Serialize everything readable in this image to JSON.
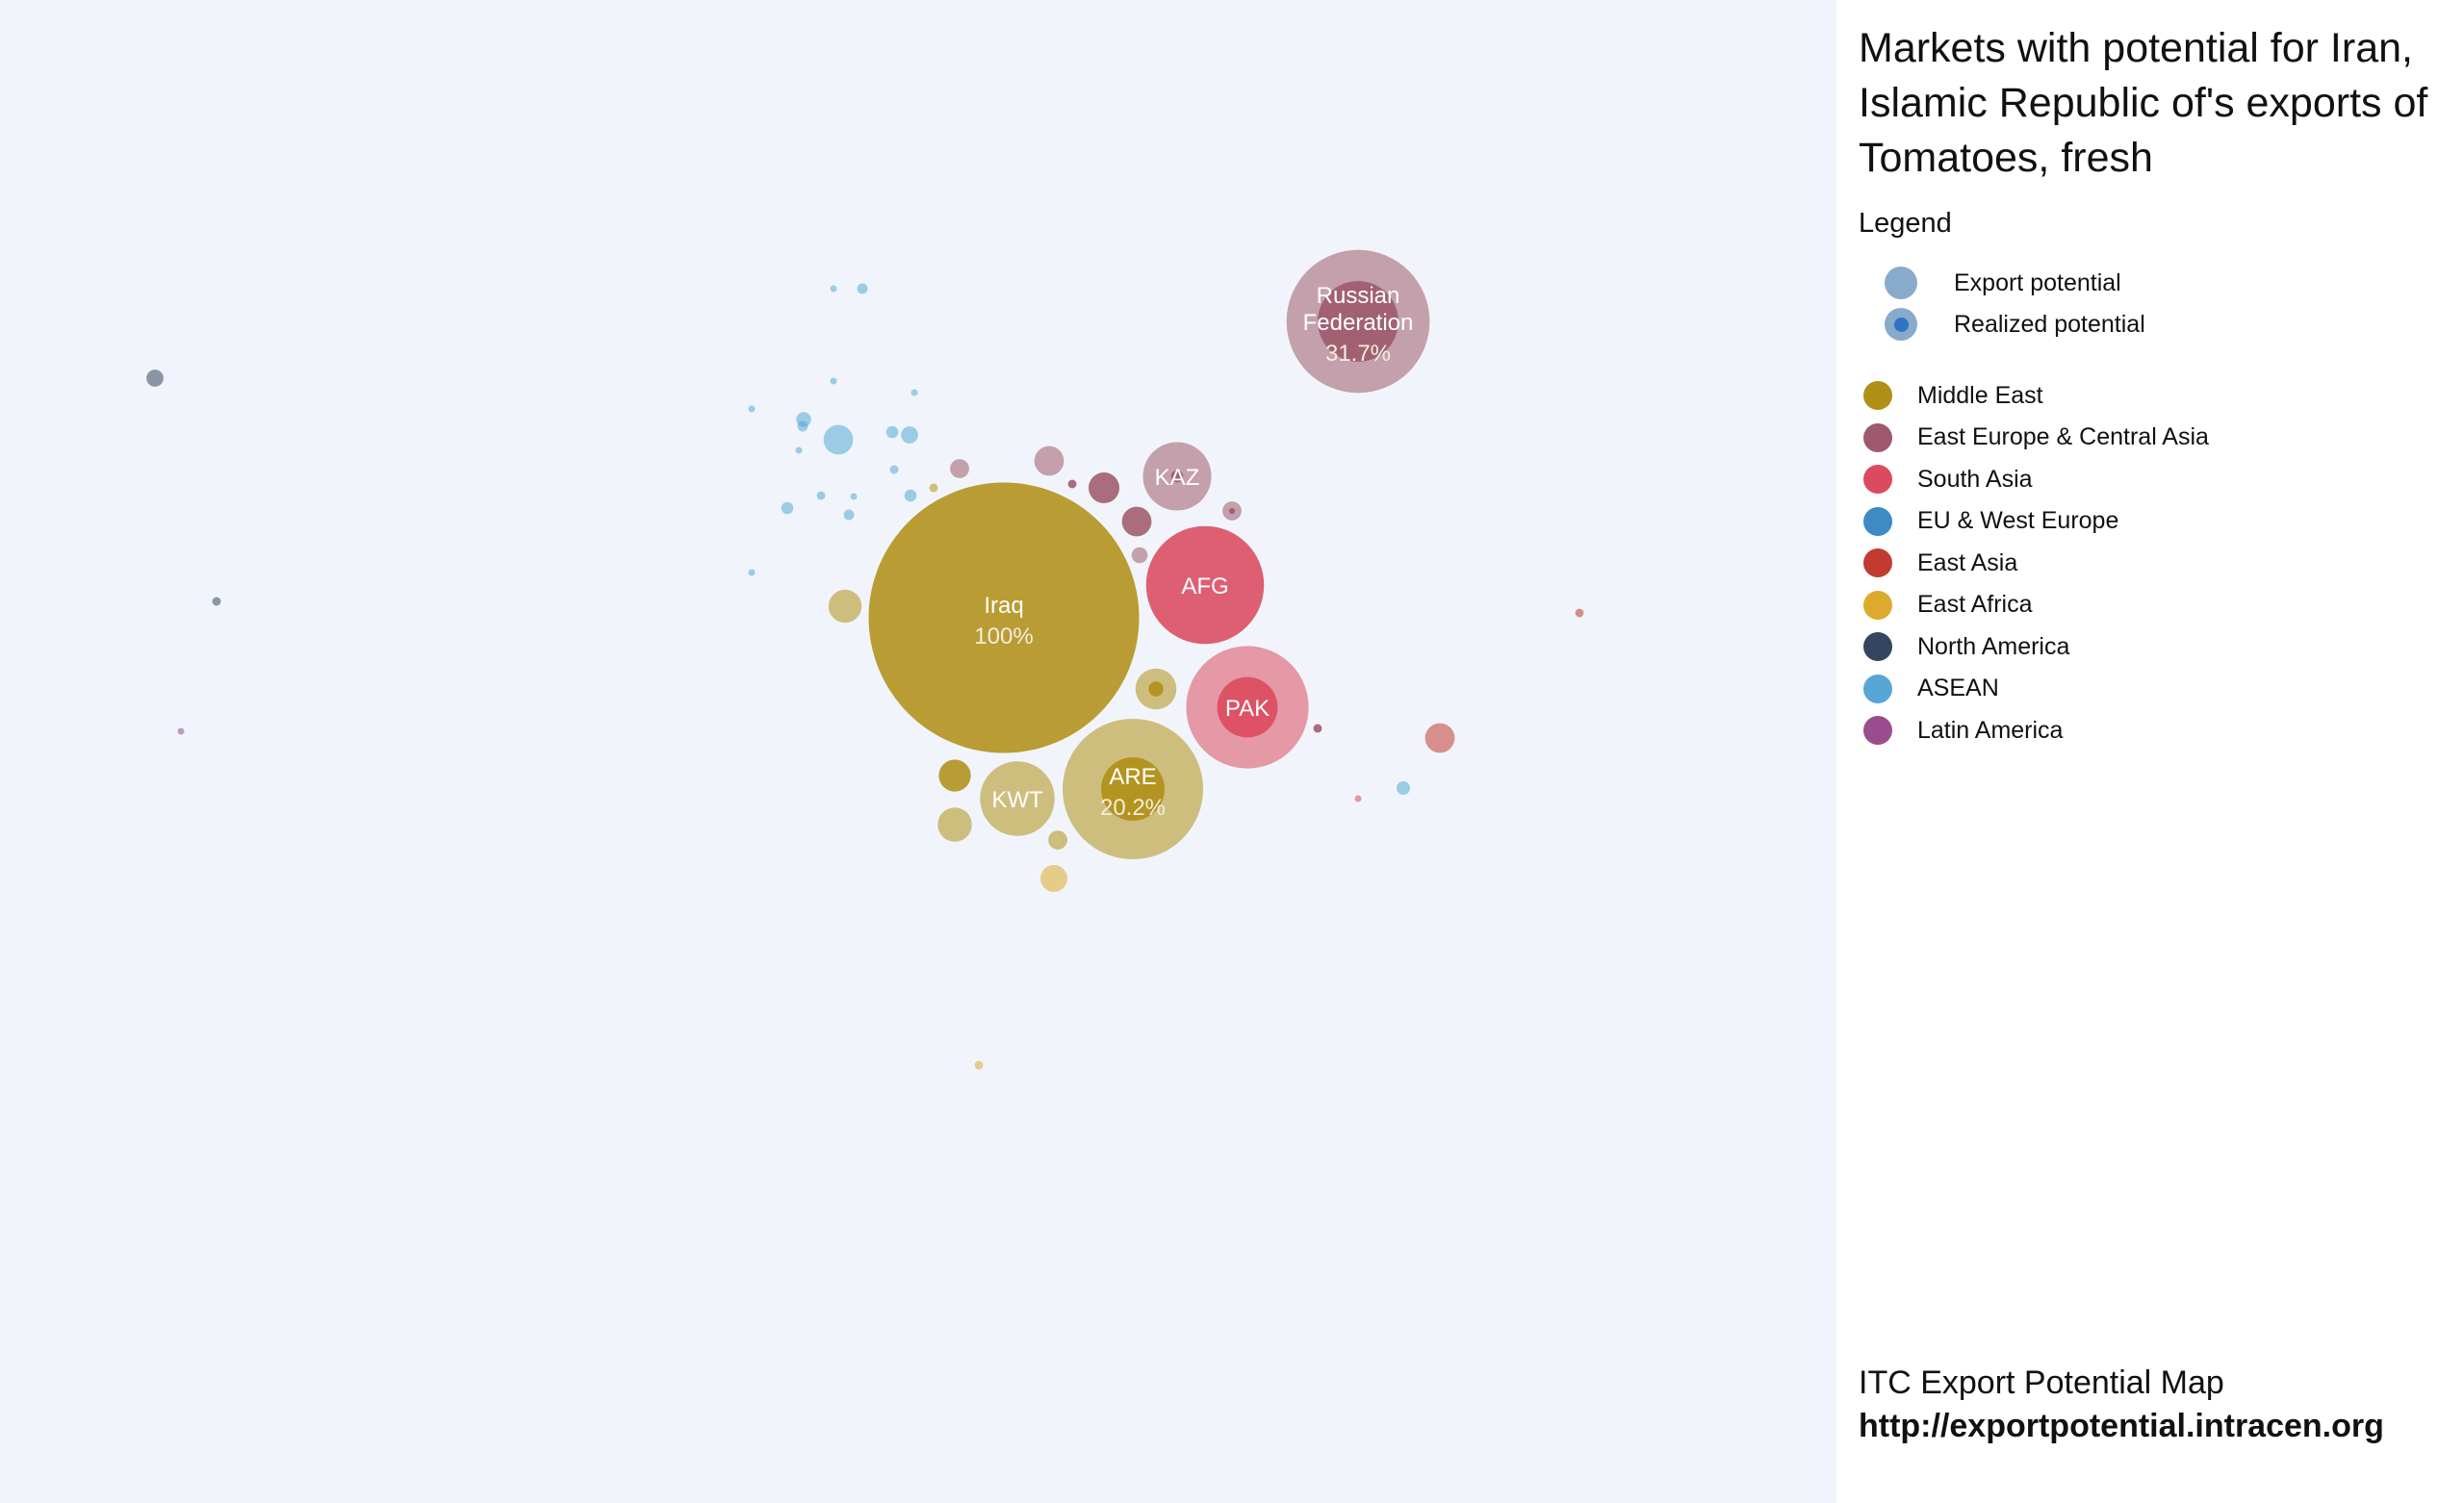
{
  "title": "Markets with potential for Iran, Islamic Republic of's exports of Tomatoes, fresh",
  "legend": {
    "heading": "Legend",
    "potential_items": [
      {
        "label": "Export potential",
        "icon": "export-potential-circle",
        "color": "#88aacb"
      },
      {
        "label": "Realized potential",
        "icon": "realized-potential-circle",
        "color": "#88aacb",
        "inner_color": "#2f73c6"
      }
    ],
    "regions": [
      {
        "label": "Middle East",
        "color": "#b08f17"
      },
      {
        "label": "East Europe & Central Asia",
        "color": "#9e5a6c"
      },
      {
        "label": "South Asia",
        "color": "#db4a5e"
      },
      {
        "label": "EU & West Europe",
        "color": "#3d8ac4"
      },
      {
        "label": "East Asia",
        "color": "#c23b31"
      },
      {
        "label": "East Africa",
        "color": "#dcaa2c"
      },
      {
        "label": "North America",
        "color": "#34465f"
      },
      {
        "label": "ASEAN",
        "color": "#56a7d6"
      },
      {
        "label": "Latin America",
        "color": "#994d8e"
      }
    ]
  },
  "footer": {
    "source": "ITC Export Potential Map",
    "url": "http://exportpotential.intracen.org"
  },
  "chart_data": {
    "type": "bubble",
    "size_measure": "export potential",
    "realized_share_shown_for_labeled_markets": true,
    "bubbles": [
      {
        "label": "Iraq",
        "realized_pct": "100%",
        "region": "Middle East",
        "potential": 100,
        "realized": 100
      },
      {
        "label": "Russian Federation",
        "realized_pct": "31.7%",
        "region": "East Europe & Central Asia",
        "potential": 28,
        "realized": 8.9
      },
      {
        "label": "ARE",
        "realized_pct": "20.2%",
        "region": "Middle East",
        "potential": 27,
        "realized": 5.5
      },
      {
        "label": "AFG",
        "region": "South Asia",
        "potential": 19,
        "realized": 19
      },
      {
        "label": "PAK",
        "region": "South Asia",
        "potential": 20.5,
        "realized": 5
      },
      {
        "label": "KAZ",
        "region": "East Europe & Central Asia",
        "potential": 6.4,
        "realized": 0.2
      },
      {
        "label": "KWT",
        "region": "Middle East",
        "potential": 7.6,
        "realized": 0
      },
      {
        "region": "Middle East",
        "potential": 2.3,
        "realized": 0.3
      },
      {
        "region": "Middle East",
        "potential": 1.5,
        "realized": 0
      },
      {
        "region": "Middle East",
        "potential": 1.6,
        "realized": 0
      },
      {
        "region": "Middle East",
        "potential": 1.4,
        "realized": 1.4
      },
      {
        "region": "Middle East",
        "potential": 0.5,
        "realized": 0
      },
      {
        "region": "Middle East",
        "potential": 0.1,
        "realized": 0
      },
      {
        "region": "East Africa",
        "potential": 1.0,
        "realized": 0
      },
      {
        "region": "East Africa",
        "potential": 0.1,
        "realized": 0
      },
      {
        "region": "East Europe & Central Asia",
        "potential": 1.3,
        "realized": 1.3
      },
      {
        "region": "East Europe & Central Asia",
        "potential": 1.2,
        "realized": 1.2
      },
      {
        "region": "East Europe & Central Asia",
        "potential": 1.2,
        "realized": 0
      },
      {
        "region": "East Europe & Central Asia",
        "potential": 0.5,
        "realized": 0.05
      },
      {
        "region": "East Europe & Central Asia",
        "potential": 0.5,
        "realized": 0
      },
      {
        "region": "East Europe & Central Asia",
        "potential": 0.35,
        "realized": 0
      },
      {
        "region": "East Europe & Central Asia",
        "potential": 0.1,
        "realized": 0.1
      },
      {
        "region": "East Europe & Central Asia",
        "potential": 0.1,
        "realized": 0.1
      },
      {
        "region": "East Asia",
        "potential": 1.2,
        "realized": 0
      },
      {
        "region": "East Asia",
        "potential": 0.1,
        "realized": 0
      },
      {
        "region": "South Asia",
        "potential": 0.05,
        "realized": 0
      },
      {
        "region": "ASEAN",
        "potential": 1.2,
        "realized": 0
      },
      {
        "region": "ASEAN",
        "potential": 0.4,
        "realized": 0
      },
      {
        "region": "ASEAN",
        "potential": 0.3,
        "realized": 0
      },
      {
        "region": "ASEAN",
        "potential": 0.25,
        "realized": 0
      },
      {
        "region": "ASEAN",
        "potential": 0.2,
        "realized": 0
      },
      {
        "region": "ASEAN",
        "potential": 0.2,
        "realized": 0
      },
      {
        "region": "ASEAN",
        "potential": 0.2,
        "realized": 0
      },
      {
        "region": "ASEAN",
        "potential": 0.15,
        "realized": 0
      },
      {
        "region": "ASEAN",
        "potential": 0.15,
        "realized": 0
      },
      {
        "region": "ASEAN",
        "potential": 0.15,
        "realized": 0
      },
      {
        "region": "ASEAN",
        "potential": 0.1,
        "realized": 0
      },
      {
        "region": "ASEAN",
        "potential": 0.1,
        "realized": 0
      },
      {
        "region": "ASEAN",
        "potential": 0.06,
        "realized": 0
      },
      {
        "region": "ASEAN",
        "potential": 0.06,
        "realized": 0
      },
      {
        "region": "ASEAN",
        "potential": 0.06,
        "realized": 0
      },
      {
        "region": "ASEAN",
        "potential": 0.05,
        "realized": 0
      },
      {
        "region": "ASEAN",
        "potential": 0.05,
        "realized": 0
      },
      {
        "region": "ASEAN",
        "potential": 0.03,
        "realized": 0
      },
      {
        "region": "ASEAN",
        "potential": 0.03,
        "realized": 0
      },
      {
        "region": "North America",
        "potential": 0.4,
        "realized": 0
      },
      {
        "region": "North America",
        "potential": 0.1,
        "realized": 0
      },
      {
        "region": "Latin America",
        "potential": 0.05,
        "realized": 0
      }
    ]
  }
}
